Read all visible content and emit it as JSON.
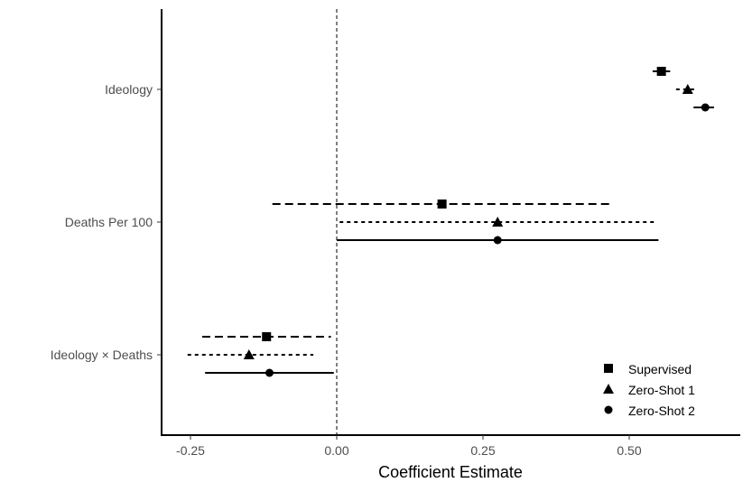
{
  "chart_data": {
    "type": "scatter",
    "subtype": "coefficient-plot",
    "title": "",
    "xlabel": "Coefficient Estimate",
    "ylabel": "",
    "xlim": [
      -0.3,
      0.68
    ],
    "xticks": [
      -0.25,
      0.0,
      0.25,
      0.5
    ],
    "xtick_labels": [
      "-0.25",
      "0.00",
      "0.25",
      "0.50"
    ],
    "categories": [
      "Ideology",
      "Deaths Per 100",
      "Ideology × Deaths"
    ],
    "reference_line": 0,
    "grid": false,
    "legend_position": "bottom-right",
    "series": [
      {
        "name": "Supervised",
        "marker": "square",
        "line_style": "long-dash",
        "points": [
          {
            "category": "Ideology",
            "estimate": 0.555,
            "ci_low": 0.54,
            "ci_high": 0.57
          },
          {
            "category": "Deaths Per 100",
            "estimate": 0.18,
            "ci_low": -0.11,
            "ci_high": 0.47
          },
          {
            "category": "Ideology × Deaths",
            "estimate": -0.12,
            "ci_low": -0.23,
            "ci_high": -0.01
          }
        ]
      },
      {
        "name": "Zero-Shot 1",
        "marker": "triangle",
        "line_style": "short-dash",
        "points": [
          {
            "category": "Ideology",
            "estimate": 0.6,
            "ci_low": 0.58,
            "ci_high": 0.615
          },
          {
            "category": "Deaths Per 100",
            "estimate": 0.275,
            "ci_low": 0.005,
            "ci_high": 0.545
          },
          {
            "category": "Ideology × Deaths",
            "estimate": -0.15,
            "ci_low": -0.255,
            "ci_high": -0.04
          }
        ]
      },
      {
        "name": "Zero-Shot 2",
        "marker": "circle",
        "line_style": "solid",
        "points": [
          {
            "category": "Ideology",
            "estimate": 0.63,
            "ci_low": 0.61,
            "ci_high": 0.645
          },
          {
            "category": "Deaths Per 100",
            "estimate": 0.275,
            "ci_low": 0.0,
            "ci_high": 0.55
          },
          {
            "category": "Ideology × Deaths",
            "estimate": -0.115,
            "ci_low": -0.225,
            "ci_high": -0.005
          }
        ]
      }
    ]
  }
}
